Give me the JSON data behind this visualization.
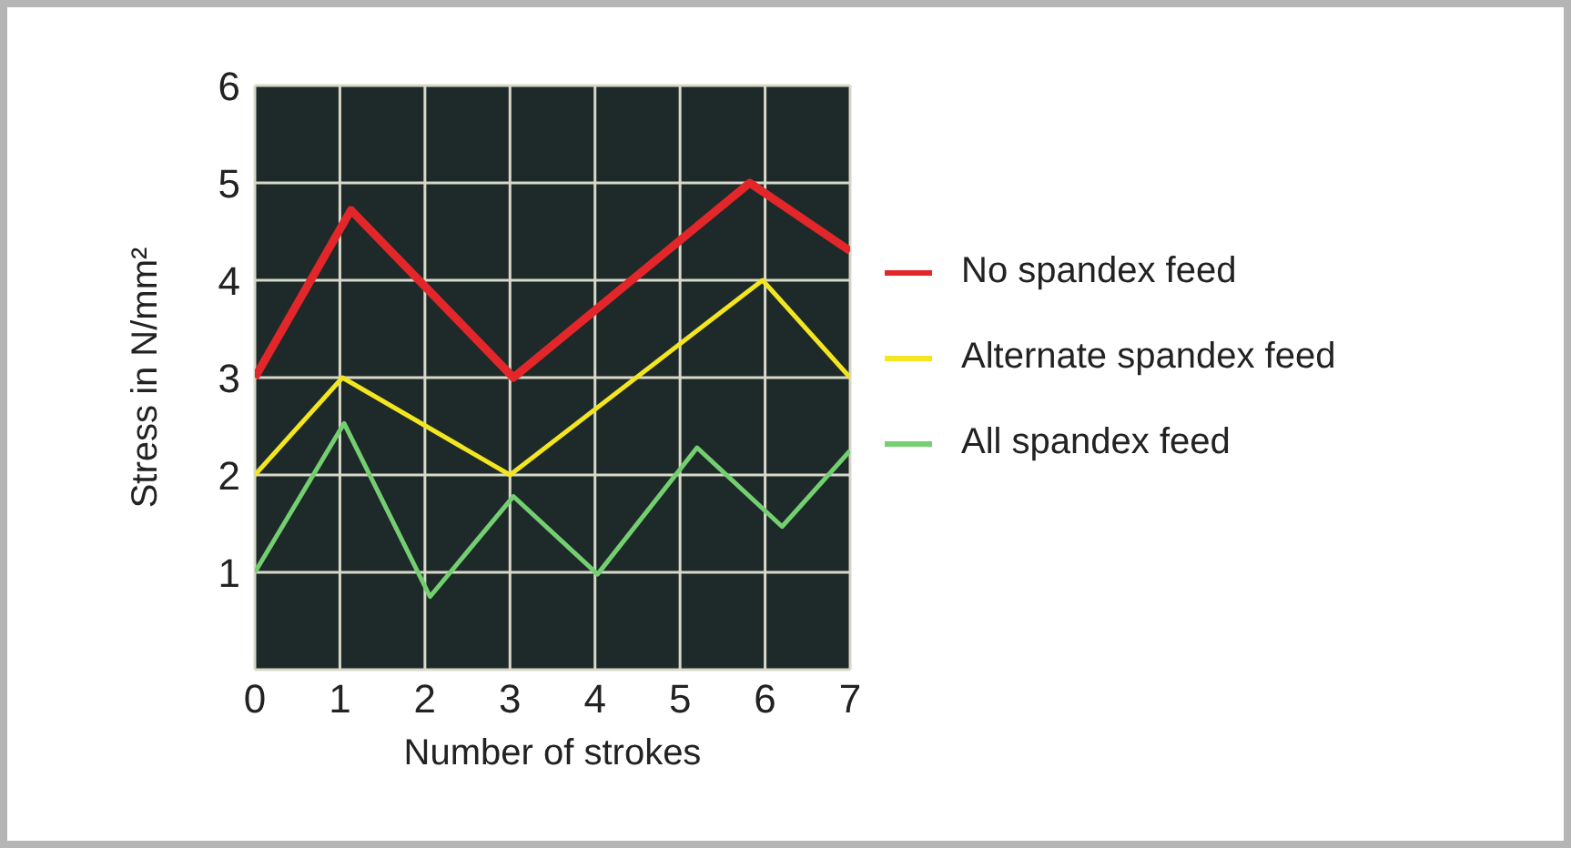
{
  "chart_data": {
    "type": "line",
    "xlabel": "Number of strokes",
    "ylabel": "Stress in N/mm²",
    "xlim": [
      0,
      7
    ],
    "xticks": [
      0,
      1,
      2,
      3,
      4,
      5,
      6,
      7
    ],
    "ylim": [
      0,
      6
    ],
    "yticks": [
      1,
      2,
      3,
      4,
      5,
      6
    ],
    "grid": true,
    "legend": "right",
    "marker": "none",
    "line_style": "solid",
    "series": [
      {
        "name": "No spandex feed",
        "color": "#e3262a",
        "x": [
          0,
          1.13,
          3.04,
          5.82,
          7
        ],
        "values": [
          3,
          4.72,
          3,
          5,
          4.3
        ]
      },
      {
        "name": "Alternate spandex feed",
        "color": "#f3e620",
        "x": [
          0,
          1.03,
          3,
          5.97,
          7
        ],
        "values": [
          2,
          3,
          2,
          4,
          3
        ]
      },
      {
        "name": "All spandex feed",
        "color": "#74cf70",
        "x": [
          0,
          1.05,
          2.06,
          3.04,
          4.03,
          5.2,
          6.2,
          7
        ],
        "values": [
          1,
          2.53,
          0.75,
          1.78,
          0.98,
          2.28,
          1.47,
          2.25
        ]
      }
    ]
  }
}
